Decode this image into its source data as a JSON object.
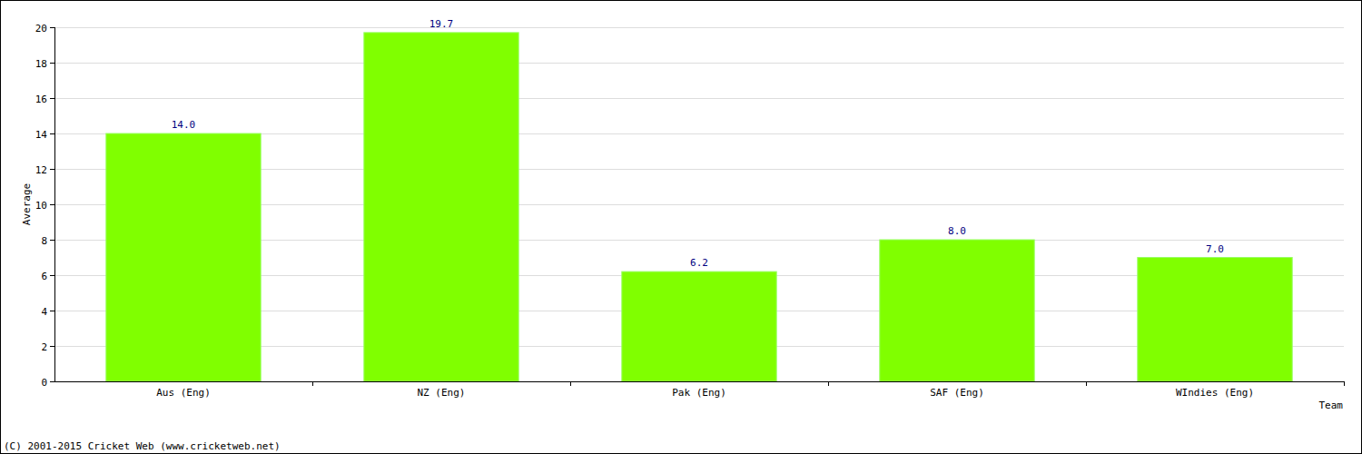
{
  "chart_data": {
    "type": "bar",
    "x_label": "Team",
    "y_label": "Average",
    "categories": [
      "Aus (Eng)",
      "NZ (Eng)",
      "Pak (Eng)",
      "SAF (Eng)",
      "WIndies (Eng)"
    ],
    "values": [
      14.0,
      19.7,
      6.2,
      8.0,
      7.0
    ],
    "value_labels": [
      "14.0",
      "19.7",
      "6.2",
      "8.0",
      "7.0"
    ],
    "color": "#80ff00",
    "ylim": [
      0,
      20
    ],
    "yticks": [
      0,
      2,
      4,
      6,
      8,
      10,
      12,
      14,
      16,
      18,
      20
    ],
    "grid": true,
    "data_labels": true,
    "annotations": [
      "(C) 2001-2015 Cricket Web (www.cricketweb.net)"
    ]
  }
}
